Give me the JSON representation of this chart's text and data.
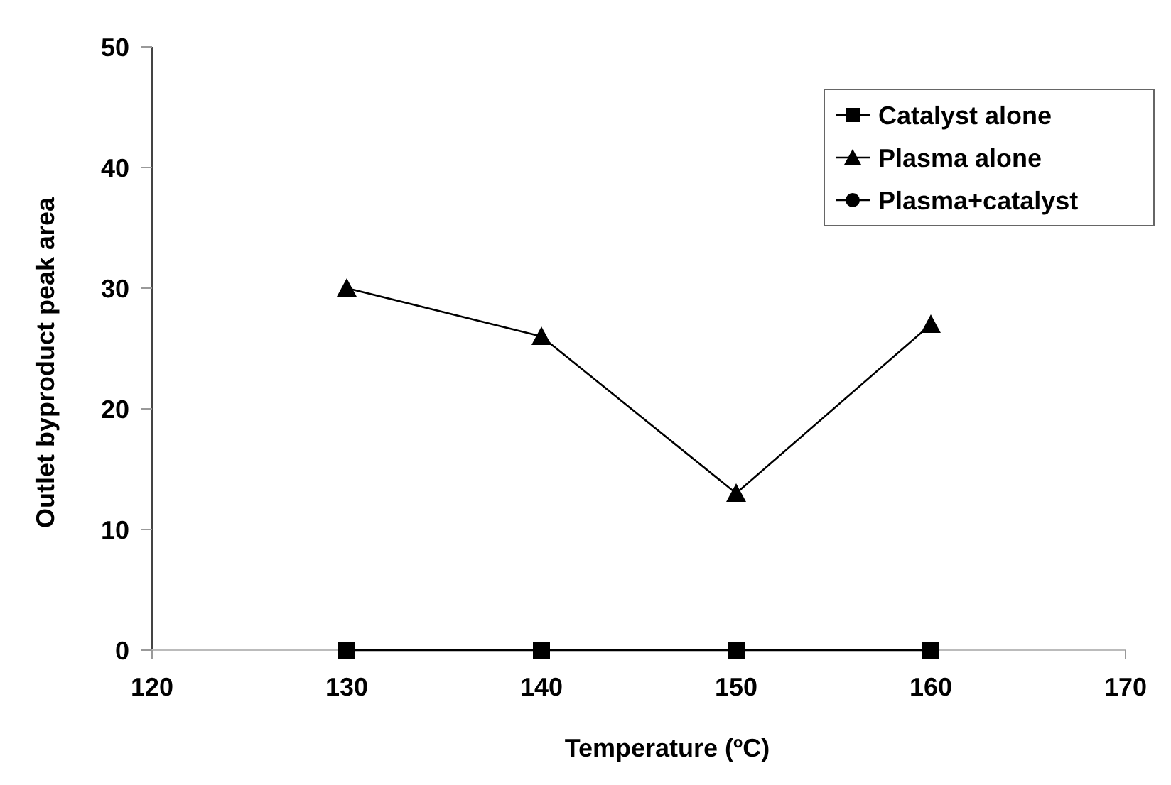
{
  "chart_data": {
    "type": "line",
    "xlabel": "Temperature (ºC)",
    "ylabel": "Outlet byproduct peak area",
    "x": [
      130,
      140,
      150,
      160
    ],
    "xlim": [
      120,
      170
    ],
    "xticks": [
      120,
      130,
      140,
      150,
      160,
      170
    ],
    "ylim": [
      0,
      50
    ],
    "yticks": [
      0,
      10,
      20,
      30,
      40,
      50
    ],
    "series": [
      {
        "name": "Catalyst alone",
        "color": "#000000",
        "marker": "square",
        "values": [
          0,
          0,
          0,
          0
        ]
      },
      {
        "name": "Plasma alone",
        "color": "#000000",
        "marker": "triangle",
        "values": [
          30,
          26,
          13,
          27
        ]
      },
      {
        "name": "Plasma+catalyst",
        "color": "#000000",
        "marker": "circle",
        "values": [
          null,
          null,
          null,
          null
        ]
      }
    ],
    "legend": "top right",
    "grid": false
  }
}
